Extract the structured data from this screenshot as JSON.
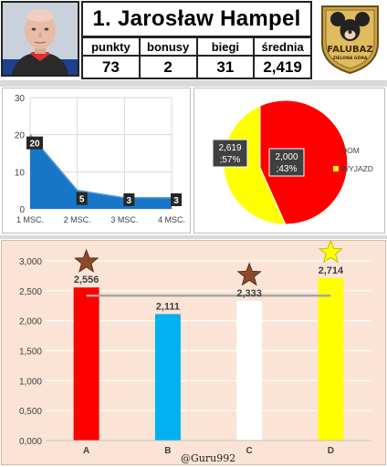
{
  "header": {
    "name": "1. Jarosław Hampel",
    "stats": [
      {
        "label": "punkty",
        "value": "73"
      },
      {
        "label": "bonusy",
        "value": "2"
      },
      {
        "label": "biegi",
        "value": "31"
      },
      {
        "label": "średnia",
        "value": "2,419"
      }
    ],
    "logo_text": "FALUBAZ",
    "logo_subtext": "ZIELONA GÓRA"
  },
  "chart_data": [
    {
      "type": "area",
      "categories": [
        "1 MSC.",
        "2 MSC.",
        "3 MSC.",
        "4 MSC."
      ],
      "values": [
        20,
        5,
        3,
        3
      ],
      "data_labels": [
        "20",
        "5",
        "3",
        "3"
      ],
      "ylim": [
        0,
        30
      ],
      "yticks": [
        "0",
        "10",
        "20",
        "30"
      ],
      "grid": true,
      "colors": {
        "fill": "#0b6fc4",
        "line": "#5b9bd5",
        "label_bg": "#262626"
      }
    },
    {
      "type": "pie",
      "slices": [
        {
          "name": "DOM",
          "value": 2.619,
          "label": "2,619\n;57%",
          "color": "#ff0000"
        },
        {
          "name": "WYJAZD",
          "value": 2.0,
          "label": "2,000\n;43%",
          "color": "#ffff00"
        }
      ],
      "legend": "right"
    },
    {
      "type": "bar",
      "categories": [
        "A",
        "B",
        "C",
        "D"
      ],
      "values": [
        2.556,
        2.111,
        2.333,
        2.714
      ],
      "data_labels": [
        "2,556",
        "2,111",
        "2,333",
        "2,714"
      ],
      "colors": [
        "#ff0000",
        "#00b0f0",
        "#ffffff",
        "#ffff00"
      ],
      "stars": [
        {
          "category": "A",
          "color": "#8b4a2b"
        },
        {
          "category": "C",
          "color": "#8b4a2b"
        },
        {
          "category": "D",
          "color": "#ffff00"
        }
      ],
      "average_line": 2.419,
      "ylim": [
        0,
        3.0
      ],
      "yticks": [
        "0,000",
        "0,500",
        "1,000",
        "1,500",
        "2,000",
        "2,500",
        "3,000"
      ],
      "grid": true,
      "background": "#fbe4d5"
    }
  ],
  "watermark": "@Guru992"
}
